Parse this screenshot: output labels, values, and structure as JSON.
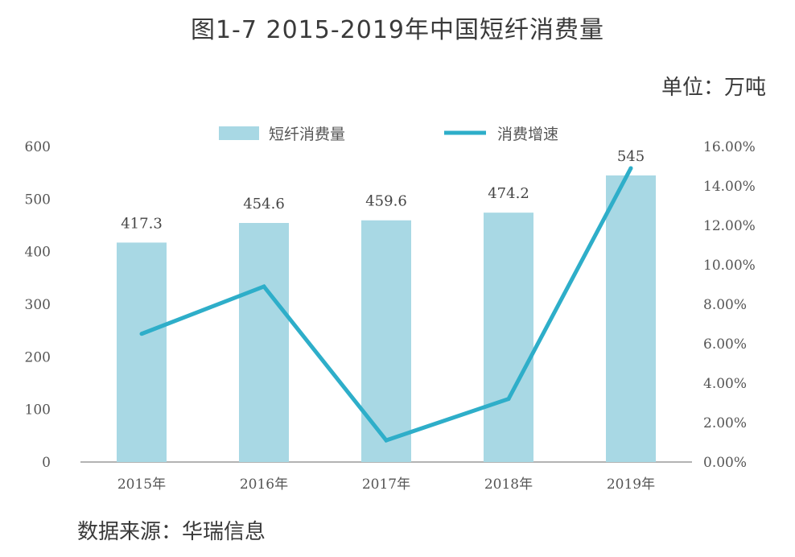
{
  "title": "图1-7  2015-2019年中国短纤消费量",
  "unit": "单位：万吨",
  "source": "数据来源：华瑞信息",
  "colors": {
    "bar": "#a8d8e4",
    "line": "#2eaec9",
    "text": "#444444"
  },
  "chart_data": {
    "type": "bar",
    "categories": [
      "2015年",
      "2016年",
      "2017年",
      "2018年",
      "2019年"
    ],
    "series": [
      {
        "name": "短纤消费量",
        "type": "bar",
        "axis": "left",
        "values": [
          417.3,
          454.6,
          459.6,
          474.2,
          545
        ],
        "labels": [
          "417.3",
          "454.6",
          "459.6",
          "474.2",
          "545"
        ]
      },
      {
        "name": "消费增速",
        "type": "line",
        "axis": "right",
        "values": [
          6.5,
          8.9,
          1.1,
          3.2,
          14.9
        ]
      }
    ],
    "y_left": {
      "ylim": [
        0,
        600
      ],
      "ticks": [
        "0",
        "100",
        "200",
        "300",
        "400",
        "500",
        "600"
      ]
    },
    "y_right": {
      "ylim": [
        0,
        16
      ],
      "ticks": [
        "0.00%",
        "2.00%",
        "4.00%",
        "6.00%",
        "8.00%",
        "10.00%",
        "12.00%",
        "14.00%",
        "16.00%"
      ]
    },
    "legend": "top",
    "grid": false
  }
}
